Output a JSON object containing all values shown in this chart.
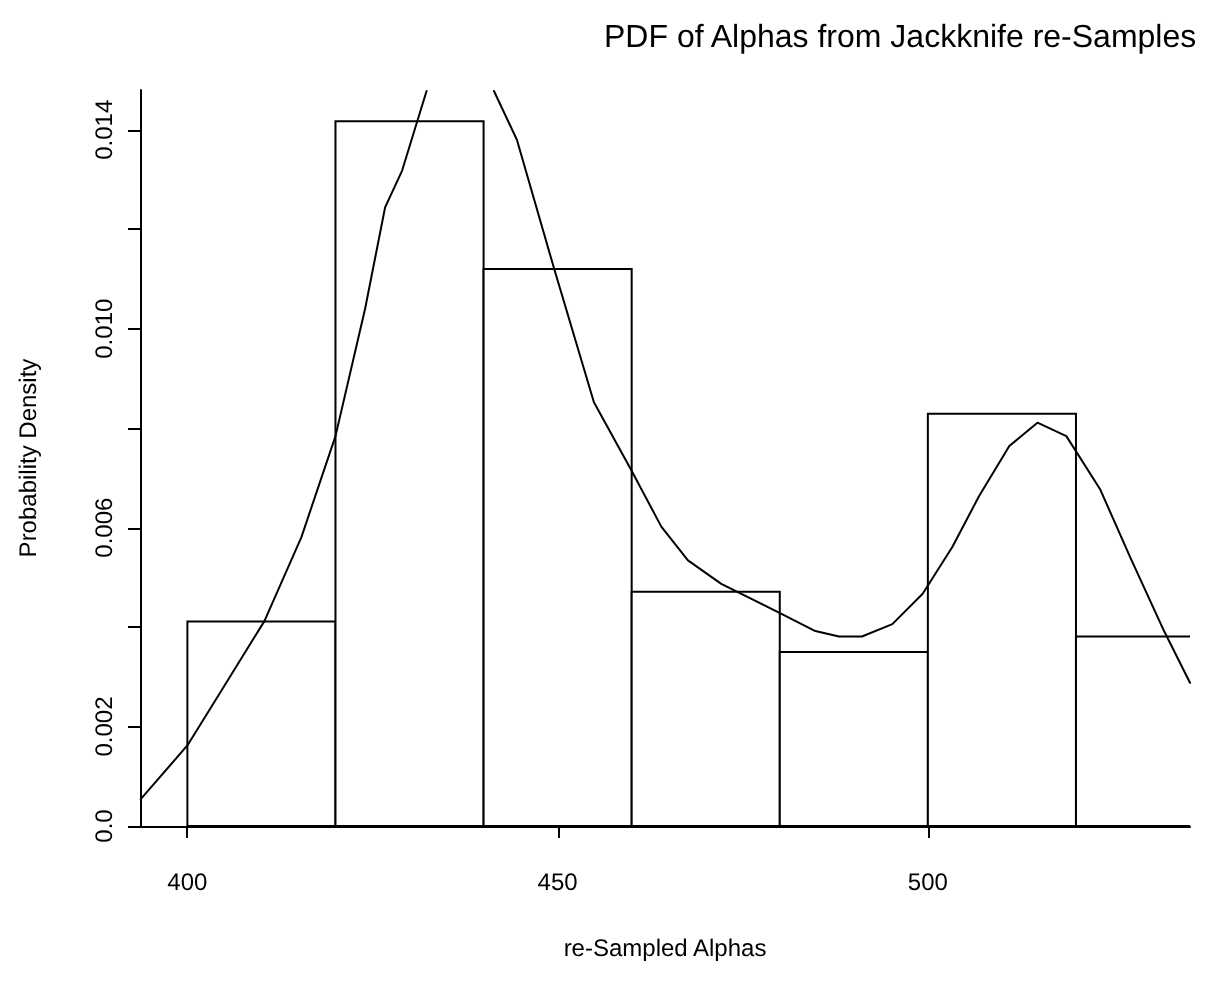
{
  "chart_data": {
    "type": "histogram",
    "title": "PDF of Alphas from Jackknife re-Samples",
    "xlabel": "re-Sampled Alphas",
    "ylabel": "Probability Density",
    "xlim": [
      393.6,
      535.4
    ],
    "xticks": [
      400,
      450,
      500
    ],
    "ylim": [
      0,
      0.0148
    ],
    "yticks": [
      {
        "value": 0,
        "label": "0.0"
      },
      {
        "value": 0.002,
        "label": "0.002"
      },
      {
        "value": 0.004,
        "label": null
      },
      {
        "value": 0.006,
        "label": "0.006"
      },
      {
        "value": 0.008,
        "label": null
      },
      {
        "value": 0.01,
        "label": "0.010"
      },
      {
        "value": 0.012,
        "label": null
      },
      {
        "value": 0.014,
        "label": "0.014"
      }
    ],
    "grid": false,
    "series": [
      {
        "color": "#000000",
        "bins": [
          400,
          420,
          440,
          460,
          480,
          500,
          520,
          540
        ],
        "values": [
          0.00411,
          0.01417,
          0.0112,
          0.00471,
          0.0035,
          0.00829,
          0.00381
        ]
      },
      {
        "type": "line",
        "color": "#000000",
        "marker": "none",
        "line_style": "solid",
        "x": [
          393.7,
          400,
          404.5,
          410.4,
          415.4,
          420,
          424,
          426.7,
          429,
          432.3,
          437,
          441.4,
          444.5,
          449.5,
          454.9,
          459.9,
          464,
          467.6,
          472.1,
          480.3,
          484.8,
          488,
          491.1,
          495.2,
          499.3,
          503.3,
          506.9,
          511,
          514.8,
          518.7,
          523.3,
          527.3,
          531.9,
          535.4
        ],
        "values": [
          0.00054,
          0.00162,
          0.0027,
          0.00412,
          0.00581,
          0.00784,
          0.0104,
          0.01244,
          0.01318,
          0.01478,
          null,
          0.01478,
          0.0138,
          0.01122,
          0.00852,
          0.00717,
          0.00602,
          0.00534,
          0.00487,
          0.00426,
          0.00392,
          0.00381,
          0.00381,
          0.00406,
          0.00467,
          0.00561,
          0.00663,
          0.00764,
          0.00811,
          0.00784,
          0.00676,
          0.00541,
          0.00392,
          0.00288
        ]
      }
    ]
  }
}
